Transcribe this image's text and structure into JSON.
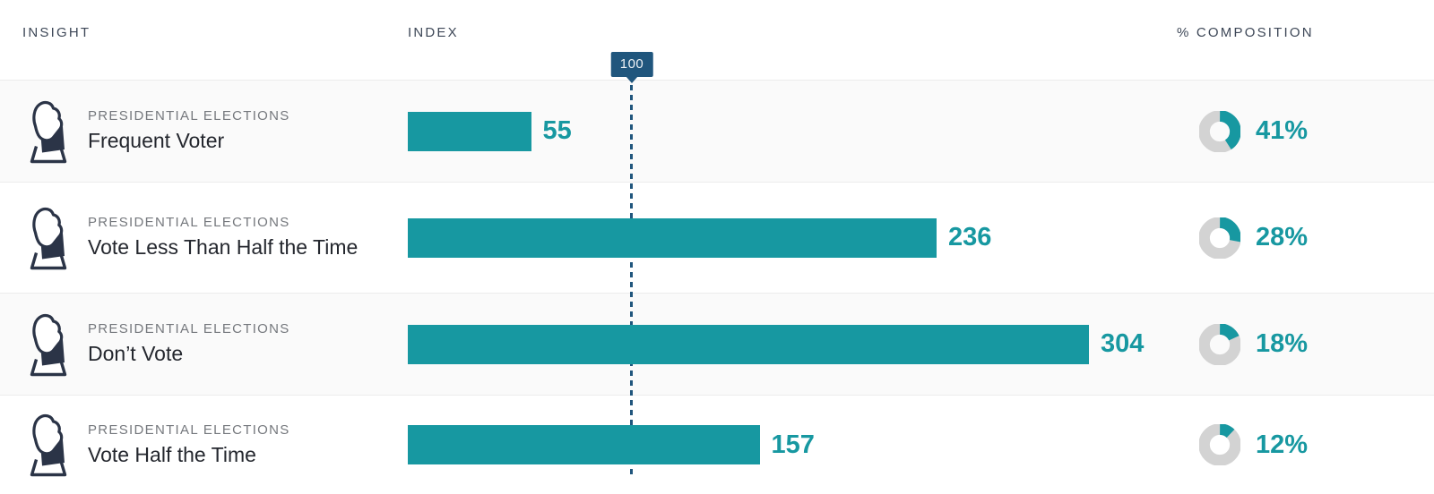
{
  "header": {
    "insight": "INSIGHT",
    "index": "INDEX",
    "composition": "% COMPOSITION"
  },
  "baseline": {
    "label": "100",
    "value": 100
  },
  "rows": [
    {
      "eyebrow": "PRESIDENTIAL ELECTIONS",
      "label": "Frequent Voter",
      "index": 55,
      "index_display": "55",
      "composition_pct": 41,
      "composition_display": "41%"
    },
    {
      "eyebrow": "PRESIDENTIAL ELECTIONS",
      "label": "Vote Less Than Half the Time",
      "index": 236,
      "index_display": "236",
      "composition_pct": 28,
      "composition_display": "28%"
    },
    {
      "eyebrow": "PRESIDENTIAL ELECTIONS",
      "label": "Don’t Vote",
      "index": 304,
      "index_display": "304",
      "composition_pct": 18,
      "composition_display": "18%"
    },
    {
      "eyebrow": "PRESIDENTIAL ELECTIONS",
      "label": "Vote Half the Time",
      "index": 157,
      "index_display": "157",
      "composition_pct": 12,
      "composition_display": "12%"
    }
  ],
  "icons": {
    "row_icon": "ballot-box-icon"
  },
  "colors": {
    "bar_teal": "#1798a1",
    "donut_track_gray": "#d3d3d3",
    "baseline_navy": "#20567d",
    "header_text": "#3d4757",
    "eyebrow_text": "#75787d",
    "label_text": "#24272e",
    "icon_navy": "#2b3447",
    "row_alt_background": "#fafafa"
  },
  "chart_data": {
    "type": "bar",
    "orientation": "horizontal",
    "title": "",
    "categories": [
      "Frequent Voter",
      "Vote Less Than Half the Time",
      "Don’t Vote",
      "Vote Half the Time"
    ],
    "category_group": "PRESIDENTIAL ELECTIONS",
    "series": [
      {
        "name": "INDEX",
        "values": [
          55,
          236,
          304,
          157
        ]
      },
      {
        "name": "% COMPOSITION",
        "values": [
          41,
          28,
          18,
          12
        ]
      }
    ],
    "baseline_marker": {
      "label": "100",
      "value": 100,
      "style": "dashed-vertical-line"
    },
    "xlim": [
      0,
      336
    ],
    "grid": false,
    "legend": false
  }
}
